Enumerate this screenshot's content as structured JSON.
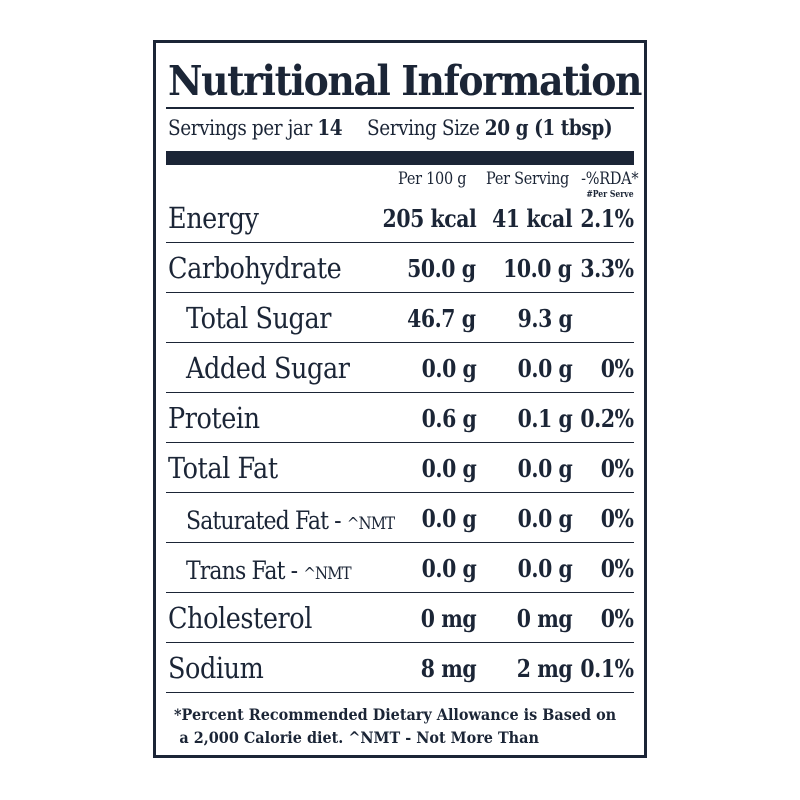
{
  "label": {
    "title": "Nutritional Information",
    "servings_per_jar_label": "Servings per jar",
    "servings_per_jar_value": "14",
    "serving_size_label": "Serving Size",
    "serving_size_value": "20 g (1 tbsp)",
    "columns": {
      "per_100g": "Per 100 g",
      "per_serving": "Per Serving",
      "rda": "-%RDA*",
      "rda_note": "#Per Serve"
    },
    "rows": [
      {
        "name": "Energy",
        "per_100g": "205 kcal",
        "per_serving": "41 kcal",
        "rda": "2.1%"
      },
      {
        "name": "Carbohydrate",
        "per_100g": "50.0 g",
        "per_serving": "10.0 g",
        "rda": "3.3%"
      },
      {
        "name": "Total Sugar",
        "per_100g": "46.7 g",
        "per_serving": "9.3 g",
        "rda": ""
      },
      {
        "name": "Added Sugar",
        "per_100g": "0.0 g",
        "per_serving": "0.0 g",
        "rda": "0%"
      },
      {
        "name": "Protein",
        "per_100g": "0.6 g",
        "per_serving": "0.1 g",
        "rda": "0.2%"
      },
      {
        "name": "Total Fat",
        "per_100g": "0.0 g",
        "per_serving": "0.0 g",
        "rda": "0%"
      },
      {
        "name": "Saturated Fat -",
        "nmt": "^NMT",
        "per_100g": "0.0 g",
        "per_serving": "0.0 g",
        "rda": "0%"
      },
      {
        "name": "Trans Fat -",
        "nmt": "^NMT",
        "per_100g": "0.0 g",
        "per_serving": "0.0 g",
        "rda": "0%"
      },
      {
        "name": "Cholesterol",
        "per_100g": "0 mg",
        "per_serving": "0 mg",
        "rda": "0%"
      },
      {
        "name": "Sodium",
        "per_100g": "8 mg",
        "per_serving": "2 mg",
        "rda": "0.1%"
      }
    ],
    "footer_line1": "*Percent Recommended Dietary Allowance is Based on",
    "footer_line2": "a 2,000 Calorie diet. ^NMT - Not More Than"
  },
  "colors": {
    "ink": "#1b2536",
    "background": "#ffffff"
  }
}
